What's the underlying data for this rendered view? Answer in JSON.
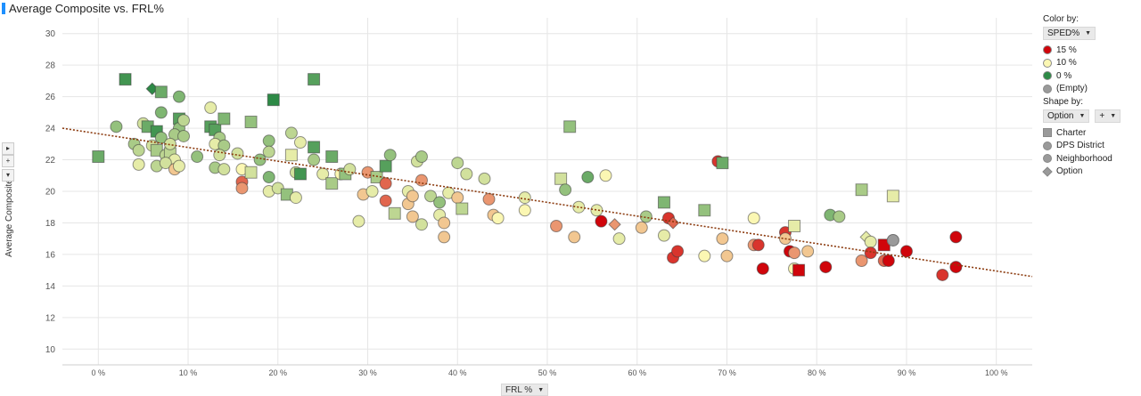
{
  "title": "Average Composite vs. FRL%",
  "x_control": {
    "label": "FRL %",
    "arrow": "▼"
  },
  "side_controls": [
    "▸",
    "+",
    "▾"
  ],
  "legend": {
    "color_by_label": "Color by:",
    "color_field": "SPED%",
    "arrow": "▼",
    "color_items": [
      {
        "label": "15 %",
        "color": "#d0050b"
      },
      {
        "label": "10 %",
        "color": "#fbf7b3"
      },
      {
        "label": "0 %",
        "color": "#2d8a46"
      },
      {
        "label": "(Empty)",
        "color": "#9a9a9a"
      }
    ],
    "shape_by_label": "Shape by:",
    "shape_field": "Option",
    "plus": "+",
    "shape_items": [
      {
        "label": "Charter",
        "shape": "square"
      },
      {
        "label": "DPS District",
        "shape": "circle"
      },
      {
        "label": "Neighborhood",
        "shape": "circle"
      },
      {
        "label": "Option",
        "shape": "diamond"
      }
    ]
  },
  "chart_data": {
    "type": "scatter",
    "title": "Average Composite vs. FRL%",
    "xlabel": "FRL %",
    "ylabel": "Average Composite",
    "xlim": [
      -0.04,
      1.04
    ],
    "ylim": [
      9,
      31
    ],
    "x_ticks": [
      0,
      0.1,
      0.2,
      0.3,
      0.4,
      0.5,
      0.6,
      0.7,
      0.8,
      0.9,
      1.0
    ],
    "x_tick_labels": [
      "0 %",
      "10 %",
      "20 %",
      "30 %",
      "40 %",
      "50 %",
      "60 %",
      "70 %",
      "80 %",
      "90 %",
      "100 %"
    ],
    "y_ticks": [
      10,
      12,
      14,
      16,
      18,
      20,
      22,
      24,
      26,
      28,
      30
    ],
    "y_tick_labels": [
      "10",
      "12",
      "14",
      "16",
      "18",
      "20",
      "22",
      "24",
      "26",
      "28",
      "30"
    ],
    "color_scale": {
      "field": "SPED%",
      "stops": [
        [
          0,
          "#2d8a46"
        ],
        [
          0.1,
          "#fbf7b3"
        ],
        [
          0.15,
          "#d0050b"
        ]
      ]
    },
    "trendline": {
      "style": "dotted",
      "color": "#8b3a0e",
      "points": [
        [
          -0.04,
          24.0
        ],
        [
          1.04,
          14.6
        ]
      ]
    },
    "points": [
      {
        "x": 0.0,
        "y": 22.2,
        "s": "square",
        "c": 0.03
      },
      {
        "x": 0.03,
        "y": 27.1,
        "s": "square",
        "c": 0.01
      },
      {
        "x": 0.06,
        "y": 26.5,
        "s": "diamond",
        "c": 0.0
      },
      {
        "x": 0.07,
        "y": 26.3,
        "s": "square",
        "c": 0.03
      },
      {
        "x": 0.09,
        "y": 26.0,
        "s": "circle",
        "c": 0.04
      },
      {
        "x": 0.02,
        "y": 24.1,
        "s": "circle",
        "c": 0.05
      },
      {
        "x": 0.05,
        "y": 24.3,
        "s": "circle",
        "c": 0.08
      },
      {
        "x": 0.055,
        "y": 24.1,
        "s": "square",
        "c": 0.03
      },
      {
        "x": 0.065,
        "y": 23.8,
        "s": "square",
        "c": 0.01
      },
      {
        "x": 0.07,
        "y": 25.0,
        "s": "circle",
        "c": 0.04
      },
      {
        "x": 0.09,
        "y": 24.6,
        "s": "square",
        "c": 0.02
      },
      {
        "x": 0.09,
        "y": 24.0,
        "s": "circle",
        "c": 0.05
      },
      {
        "x": 0.085,
        "y": 23.6,
        "s": "circle",
        "c": 0.06
      },
      {
        "x": 0.095,
        "y": 24.5,
        "s": "circle",
        "c": 0.07
      },
      {
        "x": 0.04,
        "y": 23.0,
        "s": "circle",
        "c": 0.06
      },
      {
        "x": 0.045,
        "y": 22.6,
        "s": "circle",
        "c": 0.07
      },
      {
        "x": 0.06,
        "y": 22.9,
        "s": "circle",
        "c": 0.08
      },
      {
        "x": 0.065,
        "y": 22.6,
        "s": "square",
        "c": 0.06
      },
      {
        "x": 0.07,
        "y": 23.4,
        "s": "circle",
        "c": 0.05
      },
      {
        "x": 0.075,
        "y": 22.3,
        "s": "circle",
        "c": 0.07
      },
      {
        "x": 0.08,
        "y": 22.4,
        "s": "square",
        "c": 0.07
      },
      {
        "x": 0.08,
        "y": 23.0,
        "s": "circle",
        "c": 0.08
      },
      {
        "x": 0.085,
        "y": 22.0,
        "s": "circle",
        "c": 0.09
      },
      {
        "x": 0.095,
        "y": 23.5,
        "s": "circle",
        "c": 0.06
      },
      {
        "x": 0.045,
        "y": 21.7,
        "s": "circle",
        "c": 0.09
      },
      {
        "x": 0.065,
        "y": 21.6,
        "s": "circle",
        "c": 0.07
      },
      {
        "x": 0.075,
        "y": 21.8,
        "s": "circle",
        "c": 0.08
      },
      {
        "x": 0.085,
        "y": 21.4,
        "s": "circle",
        "c": 0.11
      },
      {
        "x": 0.09,
        "y": 21.6,
        "s": "circle",
        "c": 0.09
      },
      {
        "x": 0.11,
        "y": 22.2,
        "s": "circle",
        "c": 0.05
      },
      {
        "x": 0.125,
        "y": 25.3,
        "s": "circle",
        "c": 0.09
      },
      {
        "x": 0.125,
        "y": 24.1,
        "s": "square",
        "c": 0.02
      },
      {
        "x": 0.13,
        "y": 23.9,
        "s": "square",
        "c": 0.02
      },
      {
        "x": 0.14,
        "y": 24.6,
        "s": "square",
        "c": 0.04
      },
      {
        "x": 0.135,
        "y": 23.4,
        "s": "circle",
        "c": 0.06
      },
      {
        "x": 0.13,
        "y": 23.0,
        "s": "circle",
        "c": 0.09
      },
      {
        "x": 0.14,
        "y": 22.9,
        "s": "circle",
        "c": 0.06
      },
      {
        "x": 0.135,
        "y": 22.3,
        "s": "circle",
        "c": 0.08
      },
      {
        "x": 0.13,
        "y": 21.5,
        "s": "circle",
        "c": 0.06
      },
      {
        "x": 0.14,
        "y": 21.4,
        "s": "circle",
        "c": 0.08
      },
      {
        "x": 0.155,
        "y": 22.4,
        "s": "circle",
        "c": 0.08
      },
      {
        "x": 0.16,
        "y": 21.4,
        "s": "circle",
        "c": 0.1
      },
      {
        "x": 0.16,
        "y": 20.6,
        "s": "circle",
        "c": 0.13
      },
      {
        "x": 0.16,
        "y": 20.2,
        "s": "circle",
        "c": 0.12
      },
      {
        "x": 0.17,
        "y": 24.4,
        "s": "square",
        "c": 0.05
      },
      {
        "x": 0.17,
        "y": 21.2,
        "s": "square",
        "c": 0.08
      },
      {
        "x": 0.18,
        "y": 22.0,
        "s": "circle",
        "c": 0.05
      },
      {
        "x": 0.19,
        "y": 23.2,
        "s": "circle",
        "c": 0.05
      },
      {
        "x": 0.19,
        "y": 22.5,
        "s": "circle",
        "c": 0.07
      },
      {
        "x": 0.19,
        "y": 20.9,
        "s": "circle",
        "c": 0.04
      },
      {
        "x": 0.19,
        "y": 20.0,
        "s": "circle",
        "c": 0.09
      },
      {
        "x": 0.195,
        "y": 25.8,
        "s": "square",
        "c": 0.0
      },
      {
        "x": 0.2,
        "y": 20.2,
        "s": "circle",
        "c": 0.08
      },
      {
        "x": 0.21,
        "y": 19.8,
        "s": "square",
        "c": 0.05
      },
      {
        "x": 0.215,
        "y": 23.7,
        "s": "circle",
        "c": 0.07
      },
      {
        "x": 0.215,
        "y": 22.3,
        "s": "square",
        "c": 0.09
      },
      {
        "x": 0.22,
        "y": 21.2,
        "s": "circle",
        "c": 0.08
      },
      {
        "x": 0.22,
        "y": 19.6,
        "s": "circle",
        "c": 0.09
      },
      {
        "x": 0.225,
        "y": 21.1,
        "s": "square",
        "c": 0.01
      },
      {
        "x": 0.225,
        "y": 23.1,
        "s": "circle",
        "c": 0.09
      },
      {
        "x": 0.24,
        "y": 27.1,
        "s": "square",
        "c": 0.02
      },
      {
        "x": 0.24,
        "y": 22.8,
        "s": "square",
        "c": 0.02
      },
      {
        "x": 0.24,
        "y": 22.0,
        "s": "circle",
        "c": 0.06
      },
      {
        "x": 0.25,
        "y": 21.1,
        "s": "circle",
        "c": 0.09
      },
      {
        "x": 0.26,
        "y": 22.2,
        "s": "square",
        "c": 0.03
      },
      {
        "x": 0.26,
        "y": 20.5,
        "s": "square",
        "c": 0.06
      },
      {
        "x": 0.27,
        "y": 21.1,
        "s": "circle",
        "c": 0.1
      },
      {
        "x": 0.275,
        "y": 21.1,
        "s": "square",
        "c": 0.05
      },
      {
        "x": 0.28,
        "y": 21.4,
        "s": "circle",
        "c": 0.08
      },
      {
        "x": 0.29,
        "y": 18.1,
        "s": "circle",
        "c": 0.09
      },
      {
        "x": 0.295,
        "y": 19.8,
        "s": "circle",
        "c": 0.11
      },
      {
        "x": 0.3,
        "y": 21.2,
        "s": "circle",
        "c": 0.12
      },
      {
        "x": 0.305,
        "y": 20.0,
        "s": "circle",
        "c": 0.09
      },
      {
        "x": 0.31,
        "y": 20.9,
        "s": "square",
        "c": 0.06
      },
      {
        "x": 0.32,
        "y": 21.6,
        "s": "square",
        "c": 0.02
      },
      {
        "x": 0.32,
        "y": 20.5,
        "s": "circle",
        "c": 0.13
      },
      {
        "x": 0.32,
        "y": 19.4,
        "s": "circle",
        "c": 0.13
      },
      {
        "x": 0.325,
        "y": 22.3,
        "s": "circle",
        "c": 0.05
      },
      {
        "x": 0.33,
        "y": 18.6,
        "s": "square",
        "c": 0.07
      },
      {
        "x": 0.345,
        "y": 20.0,
        "s": "circle",
        "c": 0.09
      },
      {
        "x": 0.345,
        "y": 19.2,
        "s": "circle",
        "c": 0.11
      },
      {
        "x": 0.35,
        "y": 19.7,
        "s": "circle",
        "c": 0.11
      },
      {
        "x": 0.35,
        "y": 18.4,
        "s": "circle",
        "c": 0.11
      },
      {
        "x": 0.355,
        "y": 21.9,
        "s": "circle",
        "c": 0.08
      },
      {
        "x": 0.36,
        "y": 22.2,
        "s": "circle",
        "c": 0.06
      },
      {
        "x": 0.36,
        "y": 20.7,
        "s": "circle",
        "c": 0.12
      },
      {
        "x": 0.36,
        "y": 17.9,
        "s": "circle",
        "c": 0.08
      },
      {
        "x": 0.37,
        "y": 19.7,
        "s": "circle",
        "c": 0.07
      },
      {
        "x": 0.38,
        "y": 19.3,
        "s": "circle",
        "c": 0.05
      },
      {
        "x": 0.38,
        "y": 18.5,
        "s": "circle",
        "c": 0.09
      },
      {
        "x": 0.385,
        "y": 18.0,
        "s": "circle",
        "c": 0.11
      },
      {
        "x": 0.385,
        "y": 17.1,
        "s": "circle",
        "c": 0.11
      },
      {
        "x": 0.39,
        "y": 19.9,
        "s": "circle",
        "c": 0.09
      },
      {
        "x": 0.4,
        "y": 21.8,
        "s": "circle",
        "c": 0.07
      },
      {
        "x": 0.4,
        "y": 19.6,
        "s": "circle",
        "c": 0.11
      },
      {
        "x": 0.405,
        "y": 18.9,
        "s": "square",
        "c": 0.07
      },
      {
        "x": 0.41,
        "y": 21.1,
        "s": "circle",
        "c": 0.08
      },
      {
        "x": 0.43,
        "y": 20.8,
        "s": "circle",
        "c": 0.08
      },
      {
        "x": 0.435,
        "y": 19.5,
        "s": "circle",
        "c": 0.12
      },
      {
        "x": 0.44,
        "y": 18.5,
        "s": "circle",
        "c": 0.11
      },
      {
        "x": 0.445,
        "y": 18.3,
        "s": "circle",
        "c": 0.1
      },
      {
        "x": 0.475,
        "y": 19.6,
        "s": "circle",
        "c": 0.09
      },
      {
        "x": 0.475,
        "y": 18.8,
        "s": "circle",
        "c": 0.1
      },
      {
        "x": 0.51,
        "y": 17.8,
        "s": "circle",
        "c": 0.12
      },
      {
        "x": 0.515,
        "y": 20.8,
        "s": "square",
        "c": 0.08
      },
      {
        "x": 0.52,
        "y": 20.1,
        "s": "circle",
        "c": 0.05
      },
      {
        "x": 0.525,
        "y": 24.1,
        "s": "square",
        "c": 0.05
      },
      {
        "x": 0.53,
        "y": 17.1,
        "s": "circle",
        "c": 0.11
      },
      {
        "x": 0.535,
        "y": 19.0,
        "s": "circle",
        "c": 0.09
      },
      {
        "x": 0.545,
        "y": 20.9,
        "s": "circle",
        "c": 0.03
      },
      {
        "x": 0.555,
        "y": 18.8,
        "s": "circle",
        "c": 0.09
      },
      {
        "x": 0.56,
        "y": 18.1,
        "s": "circle",
        "c": 0.15
      },
      {
        "x": 0.565,
        "y": 21.0,
        "s": "circle",
        "c": 0.1
      },
      {
        "x": 0.575,
        "y": 17.9,
        "s": "diamond",
        "c": 0.12
      },
      {
        "x": 0.58,
        "y": 17.0,
        "s": "circle",
        "c": 0.09
      },
      {
        "x": 0.605,
        "y": 17.7,
        "s": "circle",
        "c": 0.11
      },
      {
        "x": 0.61,
        "y": 18.4,
        "s": "circle",
        "c": 0.06
      },
      {
        "x": 0.63,
        "y": 17.2,
        "s": "circle",
        "c": 0.09
      },
      {
        "x": 0.63,
        "y": 19.3,
        "s": "square",
        "c": 0.04
      },
      {
        "x": 0.635,
        "y": 18.3,
        "s": "circle",
        "c": 0.14
      },
      {
        "x": 0.64,
        "y": 18.0,
        "s": "diamond",
        "c": 0.13
      },
      {
        "x": 0.64,
        "y": 15.8,
        "s": "circle",
        "c": 0.14
      },
      {
        "x": 0.645,
        "y": 16.2,
        "s": "circle",
        "c": 0.14
      },
      {
        "x": 0.675,
        "y": 15.9,
        "s": "circle",
        "c": 0.1
      },
      {
        "x": 0.675,
        "y": 18.8,
        "s": "square",
        "c": 0.05
      },
      {
        "x": 0.69,
        "y": 21.9,
        "s": "circle",
        "c": 0.14
      },
      {
        "x": 0.695,
        "y": 21.8,
        "s": "square",
        "c": 0.03
      },
      {
        "x": 0.695,
        "y": 17.0,
        "s": "circle",
        "c": 0.11
      },
      {
        "x": 0.7,
        "y": 15.9,
        "s": "circle",
        "c": 0.11
      },
      {
        "x": 0.73,
        "y": 18.3,
        "s": "circle",
        "c": 0.1
      },
      {
        "x": 0.73,
        "y": 16.6,
        "s": "circle",
        "c": 0.12
      },
      {
        "x": 0.735,
        "y": 16.6,
        "s": "circle",
        "c": 0.14
      },
      {
        "x": 0.74,
        "y": 15.1,
        "s": "circle",
        "c": 0.15
      },
      {
        "x": 0.765,
        "y": 17.4,
        "s": "circle",
        "c": 0.14
      },
      {
        "x": 0.765,
        "y": 17.0,
        "s": "circle",
        "c": 0.11
      },
      {
        "x": 0.77,
        "y": 16.2,
        "s": "circle",
        "c": 0.15
      },
      {
        "x": 0.775,
        "y": 16.1,
        "s": "circle",
        "c": 0.12
      },
      {
        "x": 0.775,
        "y": 15.1,
        "s": "circle",
        "c": 0.1
      },
      {
        "x": 0.775,
        "y": 17.8,
        "s": "square",
        "c": 0.09
      },
      {
        "x": 0.78,
        "y": 15.0,
        "s": "square",
        "c": 0.15
      },
      {
        "x": 0.79,
        "y": 16.2,
        "s": "circle",
        "c": 0.11
      },
      {
        "x": 0.81,
        "y": 15.2,
        "s": "circle",
        "c": 0.15
      },
      {
        "x": 0.815,
        "y": 18.5,
        "s": "circle",
        "c": 0.04
      },
      {
        "x": 0.825,
        "y": 18.4,
        "s": "circle",
        "c": 0.06
      },
      {
        "x": 0.85,
        "y": 20.1,
        "s": "square",
        "c": 0.06
      },
      {
        "x": 0.85,
        "y": 15.6,
        "s": "circle",
        "c": 0.12
      },
      {
        "x": 0.855,
        "y": 17.1,
        "s": "diamond",
        "c": 0.09
      },
      {
        "x": 0.86,
        "y": 16.8,
        "s": "circle",
        "c": 0.09
      },
      {
        "x": 0.86,
        "y": 16.1,
        "s": "circle",
        "c": 0.14
      },
      {
        "x": 0.875,
        "y": 16.6,
        "s": "square",
        "c": 0.15
      },
      {
        "x": 0.875,
        "y": 15.6,
        "s": "circle",
        "c": 0.13
      },
      {
        "x": 0.88,
        "y": 15.6,
        "s": "circle",
        "c": 0.15
      },
      {
        "x": 0.885,
        "y": 16.9,
        "s": "circle",
        "c": null
      },
      {
        "x": 0.885,
        "y": 19.7,
        "s": "square",
        "c": 0.09
      },
      {
        "x": 0.9,
        "y": 16.2,
        "s": "circle",
        "c": 0.15
      },
      {
        "x": 0.94,
        "y": 14.7,
        "s": "circle",
        "c": 0.14
      },
      {
        "x": 0.955,
        "y": 17.1,
        "s": "circle",
        "c": 0.15
      },
      {
        "x": 0.955,
        "y": 15.2,
        "s": "circle",
        "c": 0.15
      }
    ]
  }
}
